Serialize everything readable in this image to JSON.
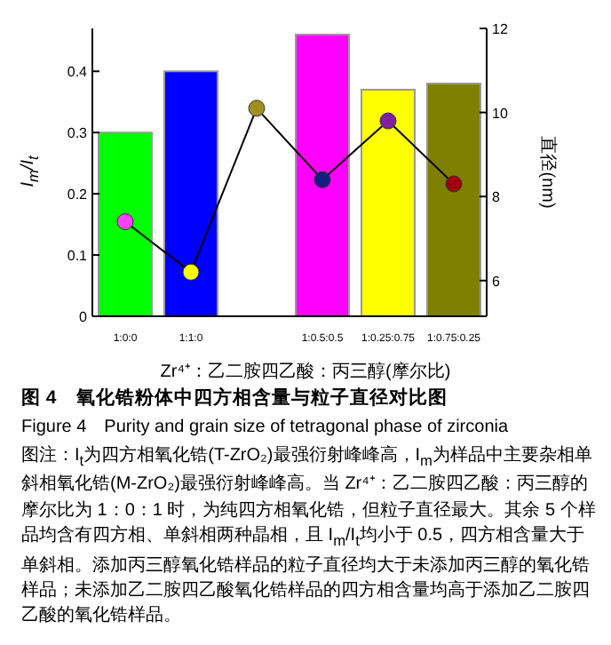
{
  "chart_data": {
    "type": "bar",
    "title": "图 4　氧化锆粉体中四方相含量与粒子直径对比图",
    "subtitle": "Figure 4　Purity and grain size of tetragonal phase of zirconia",
    "xlabel": "Zr⁴⁺：乙二胺四乙酸：丙三醇(摩尔比)",
    "ylabel": "I$_{m}$/I$_{t}$",
    "y2label": "直径(nm)",
    "categories": [
      "1:0:0",
      "1:1:0",
      null,
      "1:0.5:0.5",
      "1:0.25:0.75",
      "1:0.75:0.25"
    ],
    "series": [
      {
        "colors": [
          "#00ff00",
          "#0000ff",
          "#ffffff",
          "#ff00ff",
          "#ffff00",
          "#808000"
        ],
        "values": [
          0.3,
          0.4,
          0,
          0.46,
          0.37,
          0.38
        ]
      },
      {
        "type": "line",
        "axis": "y2",
        "color": "#000000",
        "marker": "circle",
        "line_style": "solid",
        "colors": [
          "#ff40ff",
          "#ffff00",
          "#a09020",
          "#102080",
          "#8020a0",
          "#a00010"
        ],
        "values": [
          7.4,
          6.2,
          10.1,
          8.4,
          9.8,
          8.3
        ]
      }
    ],
    "ylim": [
      0,
      0.47
    ],
    "yticks": [
      0,
      0.1,
      0.2,
      0.3,
      0.4
    ],
    "y2lim": [
      5.15,
      12
    ],
    "y2ticks": [
      6,
      8,
      10,
      12
    ],
    "annotations": [
      "图注：I$_{t}$为四方相氧化锆(T-ZrO₂)最强衍射峰峰高，I$_{m}$为样品中主要杂相单斜相氧化锆(M-ZrO₂)最强衍射峰峰高。当 Zr⁴⁺：乙二胺四乙酸：丙三醇的摩尔比为 1：0：1 时，为纯四方相氧化锆，但粒子直径最大。其余 5 个样品均含有四方相、单斜相两种晶相，且 I$_{m}$/I$_{t}$均小于 0.5，四方相含量大于单斜相。添加丙三醇氧化锆样品的粒子直径均大于未添加丙三醇的氧化锆样品；未添加乙二胺四乙酸氧化锆样品的四方相含量均高于添加乙二胺四乙酸的氧化锆样品。"
    ]
  }
}
